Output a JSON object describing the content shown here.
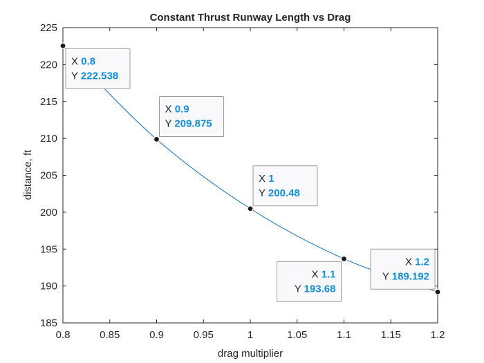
{
  "chart_data": {
    "type": "line",
    "title": "Constant Thrust Runway Length vs Drag",
    "xlabel": "drag multiplier",
    "ylabel": "distance, ft",
    "xlim": [
      0.8,
      1.2
    ],
    "ylim": [
      185,
      225
    ],
    "xticks": [
      "0.8",
      "0.85",
      "0.9",
      "0.95",
      "1",
      "1.05",
      "1.1",
      "1.15",
      "1.2"
    ],
    "yticks": [
      "185",
      "190",
      "195",
      "200",
      "205",
      "210",
      "215",
      "220",
      "225"
    ],
    "grid": false,
    "series": [
      {
        "x": [
          0.8,
          0.9,
          1.0,
          1.1,
          1.2
        ],
        "y": [
          222.538,
          209.875,
          200.48,
          193.68,
          189.192
        ]
      }
    ],
    "datatips": [
      {
        "x_text": "0.8",
        "y_text": "222.538",
        "side": "below-right"
      },
      {
        "x_text": "0.9",
        "y_text": "209.875",
        "side": "above-right"
      },
      {
        "x_text": "1",
        "y_text": "200.48",
        "side": "above-right"
      },
      {
        "x_text": "1.1",
        "y_text": "193.68",
        "side": "below-left"
      },
      {
        "x_text": "1.2",
        "y_text": "189.192",
        "side": "above-left"
      }
    ],
    "datatip_labels": {
      "x": "X",
      "y": "Y"
    },
    "colors": {
      "line": "#0072bd",
      "marker_fill": "#1a1a1a",
      "value_text": "#0f8fdc",
      "axes": "#262626"
    }
  }
}
